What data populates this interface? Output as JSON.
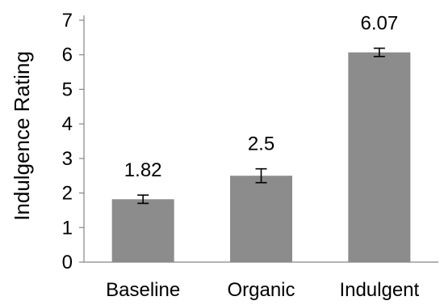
{
  "chart_data": {
    "type": "bar",
    "categories": [
      "Baseline",
      "Organic",
      "Indulgent"
    ],
    "values": [
      1.82,
      2.5,
      6.07
    ],
    "value_labels": [
      "1.82",
      "2.5",
      "6.07"
    ],
    "error": [
      0.12,
      0.2,
      0.12
    ],
    "title": "",
    "xlabel": "",
    "ylabel": "Indulgence Rating",
    "ylim": [
      0,
      7
    ],
    "yticks": [
      0,
      1,
      2,
      3,
      4,
      5,
      6,
      7
    ],
    "grid": false,
    "legend": "none",
    "bar_color": "#8c8c8c",
    "axis_color": "#868686",
    "error_bar_color": "#000000"
  }
}
